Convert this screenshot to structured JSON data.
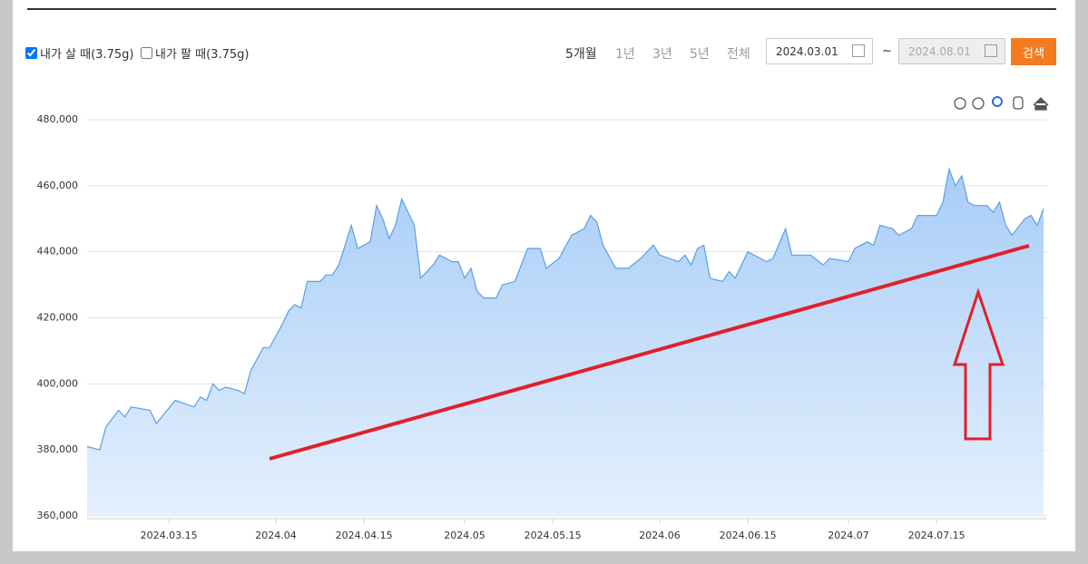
{
  "controls": {
    "options": [
      {
        "label": "내가 살 때(3.75g)",
        "checked": true
      },
      {
        "label": "내가 팔 때(3.75g)",
        "checked": false
      }
    ],
    "periods": [
      "5개월",
      "1년",
      "3년",
      "5년",
      "전체"
    ],
    "date_from": "2024.03.01",
    "date_sep": "~",
    "date_to": "2024.08.01",
    "search": "검색"
  },
  "chart_data": {
    "type": "area",
    "color": "#5b9fe2",
    "grid": true,
    "x": [
      "2024.03.02",
      "2024.03.04",
      "2024.03.05",
      "2024.03.07",
      "2024.03.08",
      "2024.03.09",
      "2024.03.12",
      "2024.03.13",
      "2024.03.16",
      "2024.03.19",
      "2024.03.20",
      "2024.03.21",
      "2024.03.22",
      "2024.03.23",
      "2024.03.24",
      "2024.03.26",
      "2024.03.27",
      "2024.03.28",
      "2024.03.30",
      "2024.03.31",
      "2024.04.02",
      "2024.04.03",
      "2024.04.04",
      "2024.04.05",
      "2024.04.06",
      "2024.04.08",
      "2024.04.09",
      "2024.04.10",
      "2024.04.11",
      "2024.04.13",
      "2024.04.14",
      "2024.04.16",
      "2024.04.17",
      "2024.04.18",
      "2024.04.19",
      "2024.04.20",
      "2024.04.21",
      "2024.04.23",
      "2024.04.24",
      "2024.04.26",
      "2024.04.27",
      "2024.04.29",
      "2024.04.30",
      "2024.05.01",
      "2024.05.02",
      "2024.05.03",
      "2024.05.04",
      "2024.05.06",
      "2024.05.07",
      "2024.05.09",
      "2024.05.11",
      "2024.05.13",
      "2024.05.14",
      "2024.05.16",
      "2024.05.18",
      "2024.05.20",
      "2024.05.21",
      "2024.05.22",
      "2024.05.23",
      "2024.05.25",
      "2024.05.27",
      "2024.05.29",
      "2024.05.31",
      "2024.06.01",
      "2024.06.04",
      "2024.06.05",
      "2024.06.06",
      "2024.06.07",
      "2024.06.08",
      "2024.06.09",
      "2024.06.11",
      "2024.06.12",
      "2024.06.13",
      "2024.06.15",
      "2024.06.18",
      "2024.06.19",
      "2024.06.21",
      "2024.06.22",
      "2024.06.25",
      "2024.06.27",
      "2024.06.28",
      "2024.07.01",
      "2024.07.02",
      "2024.07.04",
      "2024.07.05",
      "2024.07.06",
      "2024.07.08",
      "2024.07.09",
      "2024.07.11",
      "2024.07.12",
      "2024.07.15",
      "2024.07.16",
      "2024.07.17",
      "2024.07.18",
      "2024.07.19",
      "2024.07.20",
      "2024.07.21",
      "2024.07.23",
      "2024.07.24",
      "2024.07.25",
      "2024.07.26",
      "2024.07.27",
      "2024.07.29",
      "2024.07.30",
      "2024.07.31",
      "2024.08.01"
    ],
    "values": [
      381000,
      380000,
      387000,
      392000,
      390000,
      393000,
      392000,
      388000,
      395000,
      393000,
      396000,
      395000,
      400000,
      398000,
      399000,
      398000,
      397000,
      404000,
      411000,
      411000,
      418000,
      422000,
      424000,
      423000,
      431000,
      431000,
      433000,
      433000,
      436000,
      448000,
      441000,
      443000,
      454000,
      450000,
      444000,
      448000,
      456000,
      448000,
      432000,
      436000,
      439000,
      437000,
      437000,
      432000,
      435000,
      428000,
      426000,
      426000,
      430000,
      431000,
      441000,
      441000,
      435000,
      438000,
      445000,
      447000,
      451000,
      449000,
      442000,
      435000,
      435000,
      438000,
      442000,
      439000,
      437000,
      439000,
      436000,
      441000,
      442000,
      432000,
      431000,
      434000,
      432000,
      440000,
      437000,
      438000,
      447000,
      439000,
      439000,
      436000,
      438000,
      437000,
      441000,
      443000,
      442000,
      448000,
      447000,
      445000,
      447000,
      451000,
      451000,
      455000,
      465000,
      460000,
      463000,
      455000,
      454000,
      454000,
      452000,
      455000,
      448000,
      445000,
      450000,
      451000,
      448000,
      453000
    ],
    "xlim": [
      "2024.03.02",
      "2024.08.01"
    ],
    "xticks": [
      "2024.03.15",
      {
        "value": "2024.04.01",
        "label": "2024.04"
      },
      "2024.04.15",
      {
        "value": "2024.05.01",
        "label": "2024.05"
      },
      "2024.05.15",
      {
        "value": "2024.06.01",
        "label": "2024.06"
      },
      "2024.06.15",
      {
        "value": "2024.07.01",
        "label": "2024.07"
      },
      "2024.07.15"
    ],
    "ylim": [
      360000,
      480000
    ],
    "yticks": [
      {
        "value": 360000,
        "label": "360,000"
      },
      {
        "value": 380000,
        "label": "380,000"
      },
      {
        "value": 400000,
        "label": "400,000"
      },
      {
        "value": 420000,
        "label": "420,000"
      },
      {
        "value": 440000,
        "label": "440,000"
      },
      {
        "value": 460000,
        "label": "460,000"
      },
      {
        "value": 480000,
        "label": "480,000"
      }
    ]
  }
}
